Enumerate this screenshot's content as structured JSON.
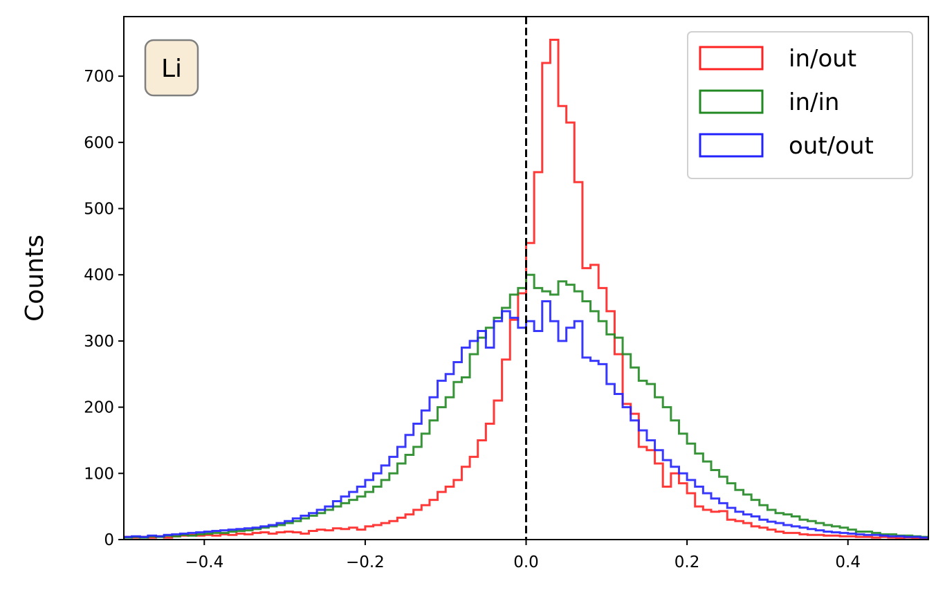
{
  "chart_data": {
    "type": "histogram",
    "ylabel": "Counts",
    "xlim": [
      -0.5,
      0.5
    ],
    "ylim": [
      0,
      790
    ],
    "xticks": [
      -0.4,
      -0.2,
      0.0,
      0.2,
      0.4
    ],
    "xtick_labels": [
      "−0.4",
      "−0.2",
      "0.0",
      "0.2",
      "0.4"
    ],
    "yticks": [
      0,
      100,
      200,
      300,
      400,
      500,
      600,
      700
    ],
    "ytick_labels": [
      "0",
      "100",
      "200",
      "300",
      "400",
      "500",
      "600",
      "700"
    ],
    "grid": false,
    "legend_position": "top-right",
    "annotation": "Li",
    "reference_line": {
      "x": 0.0,
      "style": "dashed",
      "color": "#000000"
    },
    "bin_edges_start": -0.5,
    "bin_width": 0.01,
    "series": [
      {
        "name": "in/out",
        "color": "#ff2222",
        "counts": [
          4,
          3,
          4,
          3,
          5,
          3,
          5,
          6,
          7,
          6,
          7,
          6,
          8,
          7,
          9,
          8,
          10,
          11,
          9,
          11,
          12,
          11,
          9,
          13,
          15,
          14,
          17,
          16,
          18,
          15,
          20,
          22,
          25,
          28,
          33,
          38,
          45,
          52,
          60,
          72,
          80,
          90,
          110,
          125,
          150,
          175,
          210,
          272,
          332,
          372,
          448,
          555,
          720,
          755,
          655,
          630,
          540,
          410,
          415,
          380,
          345,
          280,
          205,
          190,
          140,
          135,
          115,
          80,
          100,
          85,
          70,
          50,
          45,
          42,
          43,
          30,
          28,
          25,
          20,
          18,
          15,
          12,
          10,
          10,
          8,
          7,
          7,
          6,
          6,
          5,
          5,
          4,
          4,
          3,
          4,
          3,
          2,
          3,
          2,
          2
        ]
      },
      {
        "name": "in/in",
        "color": "#228822",
        "counts": [
          3,
          4,
          3,
          5,
          4,
          6,
          5,
          7,
          6,
          8,
          9,
          10,
          10,
          12,
          13,
          14,
          16,
          18,
          20,
          22,
          25,
          28,
          32,
          36,
          40,
          45,
          50,
          55,
          60,
          65,
          72,
          80,
          90,
          100,
          115,
          128,
          140,
          160,
          180,
          200,
          215,
          238,
          245,
          280,
          305,
          320,
          335,
          350,
          370,
          380,
          400,
          380,
          375,
          370,
          390,
          385,
          375,
          360,
          345,
          330,
          310,
          305,
          280,
          260,
          240,
          235,
          215,
          200,
          180,
          160,
          145,
          130,
          118,
          105,
          95,
          85,
          75,
          68,
          60,
          52,
          45,
          40,
          38,
          35,
          30,
          28,
          25,
          22,
          20,
          18,
          15,
          12,
          12,
          10,
          8,
          8,
          6,
          6,
          5,
          4
        ]
      },
      {
        "name": "out/out",
        "color": "#2222ff",
        "counts": [
          4,
          5,
          4,
          6,
          5,
          7,
          8,
          9,
          10,
          11,
          12,
          13,
          14,
          15,
          16,
          17,
          18,
          20,
          22,
          25,
          28,
          32,
          36,
          40,
          45,
          50,
          58,
          65,
          72,
          80,
          90,
          100,
          112,
          125,
          140,
          158,
          175,
          195,
          215,
          240,
          250,
          268,
          290,
          300,
          315,
          290,
          330,
          345,
          335,
          320,
          330,
          315,
          360,
          330,
          300,
          320,
          330,
          275,
          270,
          265,
          235,
          220,
          200,
          180,
          165,
          150,
          135,
          120,
          110,
          100,
          90,
          80,
          70,
          62,
          55,
          48,
          42,
          38,
          35,
          30,
          27,
          25,
          22,
          20,
          18,
          16,
          14,
          12,
          11,
          10,
          9,
          8,
          7,
          7,
          6,
          5,
          5,
          4,
          4,
          3
        ]
      }
    ]
  }
}
